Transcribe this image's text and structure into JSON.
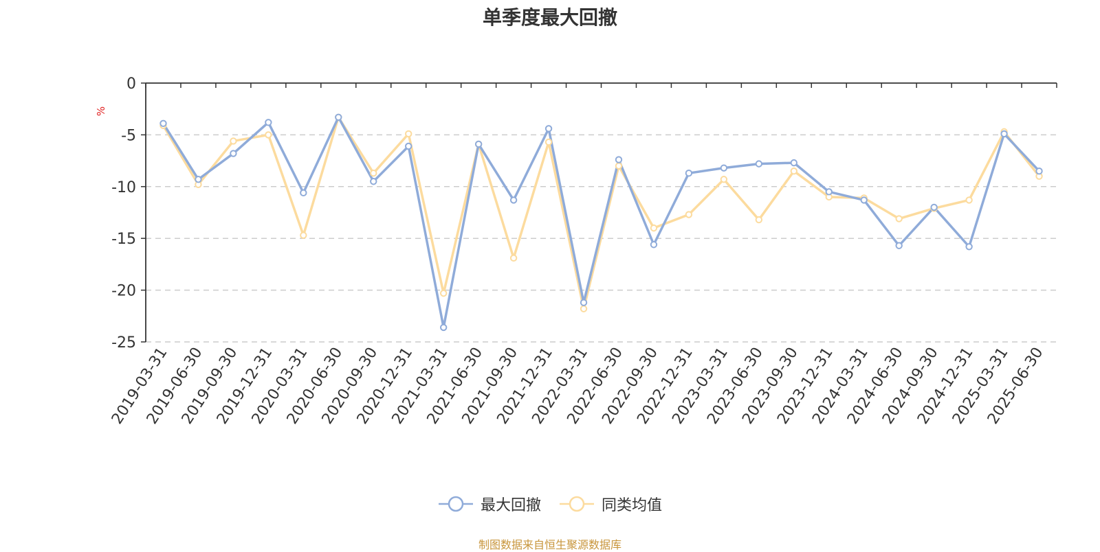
{
  "chart_data": {
    "type": "line",
    "title": "单季度最大回撤",
    "ylabel": "%",
    "ylim": [
      -25,
      0
    ],
    "yticks": [
      0,
      -5,
      -10,
      -15,
      -20,
      -25
    ],
    "grid": "dashed-horizontal",
    "legend_position": "bottom-center",
    "categories": [
      "2019-03-31",
      "2019-06-30",
      "2019-09-30",
      "2019-12-31",
      "2020-03-31",
      "2020-06-30",
      "2020-09-30",
      "2020-12-31",
      "2021-03-31",
      "2021-06-30",
      "2021-09-30",
      "2021-12-31",
      "2022-03-31",
      "2022-06-30",
      "2022-09-30",
      "2022-12-31",
      "2023-03-31",
      "2023-06-30",
      "2023-09-30",
      "2023-12-31",
      "2024-03-31",
      "2024-06-30",
      "2024-09-30",
      "2024-12-31",
      "2025-03-31",
      "2025-06-30"
    ],
    "series": [
      {
        "name": "最大回撤",
        "color": "#8fabd9",
        "values": [
          -3.9,
          -9.3,
          -6.8,
          -3.8,
          -10.6,
          -3.3,
          -9.5,
          -6.1,
          -23.6,
          -5.9,
          -11.3,
          -4.4,
          -21.2,
          -7.4,
          -15.6,
          -8.7,
          -8.2,
          -7.8,
          -7.7,
          -10.5,
          -11.3,
          -15.7,
          -12.0,
          -15.8,
          -4.9,
          -8.5
        ]
      },
      {
        "name": "同类均值",
        "color": "#fcdb9e",
        "values": [
          -4.1,
          -9.8,
          -5.6,
          -5.0,
          -14.7,
          -3.3,
          -8.7,
          -4.9,
          -20.3,
          -5.9,
          -16.9,
          -5.7,
          -21.8,
          -8.0,
          -14.0,
          -12.7,
          -9.3,
          -13.2,
          -8.5,
          -11.0,
          -11.1,
          -13.1,
          -12.1,
          -11.3,
          -4.7,
          -9.0
        ]
      }
    ]
  },
  "footer": {
    "source": "制图数据来自恒生聚源数据库"
  }
}
